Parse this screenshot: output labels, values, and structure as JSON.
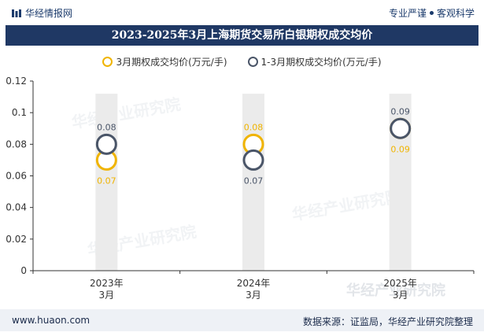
{
  "header": {
    "brand": "华经情报网",
    "tagline_left": "专业严谨",
    "tagline_right": "客观科学"
  },
  "watermark": {
    "text": "华经产业研究院",
    "url": "www.huaon.com"
  },
  "footer": {
    "url": "www.huaon.com",
    "source": "数据来源：证监局，华经产业研究院整理"
  },
  "colors": {
    "title_bg": "#1f3864",
    "series1": "#f0b400",
    "series2": "#4a5568",
    "bar_bg": "#ebebeb"
  },
  "chart_data": {
    "type": "scatter",
    "title": "2023-2025年3月上海期货交易所白银期权成交均价",
    "categories": [
      "2023年\n3月",
      "2024年\n3月",
      "2025年\n3月"
    ],
    "series": [
      {
        "name": "3月期权成交均价(万元/手)",
        "values": [
          0.07,
          0.08,
          0.09
        ],
        "labels": [
          "0.07",
          "0.08",
          "0.09"
        ]
      },
      {
        "name": "1-3月期权成交均价(万元/手)",
        "values": [
          0.08,
          0.07,
          0.09
        ],
        "labels": [
          "0.08",
          "0.07",
          "0.09"
        ]
      }
    ],
    "background_bar_value": 0.112,
    "ylim": [
      0,
      0.12
    ],
    "yticks": [
      0,
      0.02,
      0.04,
      0.06,
      0.08,
      0.1,
      0.12
    ],
    "ytick_labels": [
      "0",
      "0.02",
      "0.04",
      "0.06",
      "0.08",
      "0.1",
      "0.12"
    ],
    "xlabel": "",
    "ylabel": "",
    "legend": "top-center"
  }
}
